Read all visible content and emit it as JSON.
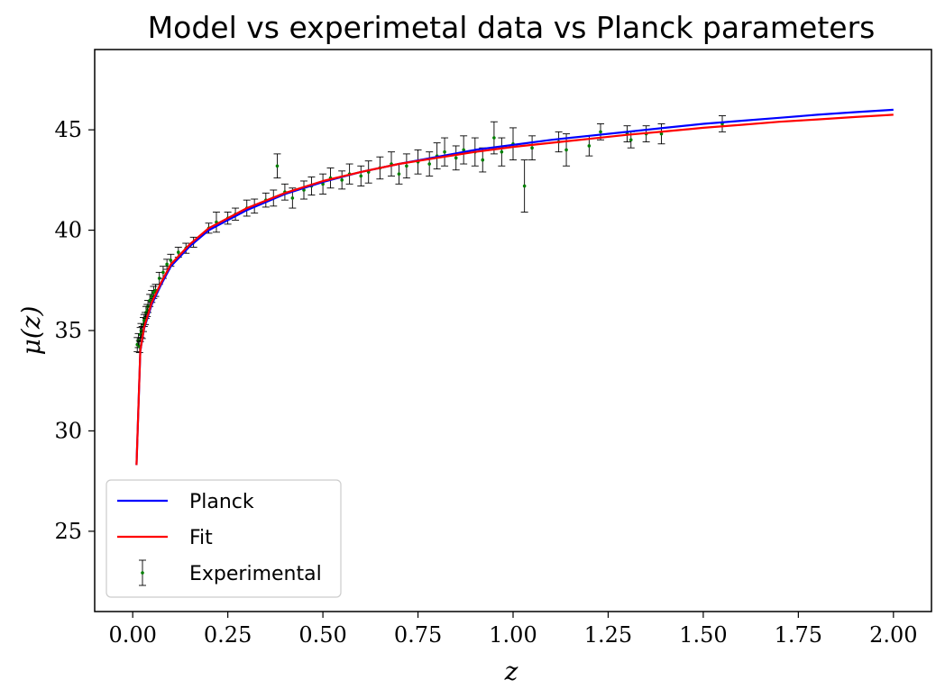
{
  "chart_data": {
    "type": "scatter",
    "title": "Model vs experimetal data vs Planck parameters",
    "xlabel": "z",
    "ylabel": "μ(z)",
    "xlim": [
      -0.1,
      2.1
    ],
    "ylim": [
      21,
      49
    ],
    "x_ticks": [
      0.0,
      0.25,
      0.5,
      0.75,
      1.0,
      1.25,
      1.5,
      1.75,
      2.0
    ],
    "x_tick_labels": [
      "0.00",
      "0.25",
      "0.50",
      "0.75",
      "1.00",
      "1.25",
      "1.50",
      "1.75",
      "2.00"
    ],
    "y_ticks": [
      25,
      30,
      35,
      40,
      45
    ],
    "y_tick_labels": [
      "25",
      "30",
      "35",
      "40",
      "45"
    ],
    "grid": false,
    "legend_position": "lower-left",
    "series": [
      {
        "name": "Planck",
        "kind": "line",
        "color": "#0000ff",
        "x": [
          0.01,
          0.02,
          0.03,
          0.05,
          0.075,
          0.1,
          0.15,
          0.2,
          0.3,
          0.4,
          0.5,
          0.6,
          0.7,
          0.8,
          0.9,
          1.0,
          1.1,
          1.2,
          1.3,
          1.4,
          1.5,
          1.6,
          1.7,
          1.8,
          1.9,
          2.0
        ],
        "y": [
          28.3,
          33.98,
          35.1,
          36.3,
          37.3,
          38.2,
          39.2,
          40.0,
          41.0,
          41.8,
          42.4,
          42.9,
          43.3,
          43.65,
          44.0,
          44.25,
          44.5,
          44.7,
          44.9,
          45.1,
          45.3,
          45.45,
          45.6,
          45.75,
          45.88,
          46.0
        ]
      },
      {
        "name": "Fit",
        "kind": "line",
        "color": "#ff0000",
        "x": [
          0.01,
          0.02,
          0.03,
          0.05,
          0.075,
          0.1,
          0.15,
          0.2,
          0.3,
          0.4,
          0.5,
          0.6,
          0.7,
          0.8,
          0.9,
          1.0,
          1.1,
          1.2,
          1.3,
          1.4,
          1.5,
          1.6,
          1.7,
          1.8,
          1.9,
          2.0
        ],
        "y": [
          28.3,
          34.0,
          35.15,
          36.4,
          37.4,
          38.3,
          39.3,
          40.1,
          41.1,
          41.85,
          42.45,
          42.9,
          43.3,
          43.6,
          43.9,
          44.15,
          44.35,
          44.55,
          44.75,
          44.92,
          45.1,
          45.25,
          45.4,
          45.52,
          45.64,
          45.75
        ]
      },
      {
        "name": "Experimental",
        "kind": "errorbar",
        "color": "#008000",
        "ecolor": "#000000",
        "x": [
          0.012,
          0.015,
          0.018,
          0.02,
          0.022,
          0.025,
          0.028,
          0.03,
          0.033,
          0.035,
          0.038,
          0.04,
          0.045,
          0.05,
          0.055,
          0.06,
          0.07,
          0.08,
          0.09,
          0.1,
          0.12,
          0.14,
          0.16,
          0.2,
          0.22,
          0.25,
          0.27,
          0.3,
          0.32,
          0.35,
          0.37,
          0.38,
          0.4,
          0.42,
          0.45,
          0.47,
          0.5,
          0.52,
          0.55,
          0.57,
          0.6,
          0.62,
          0.65,
          0.68,
          0.7,
          0.72,
          0.75,
          0.78,
          0.8,
          0.82,
          0.85,
          0.87,
          0.9,
          0.92,
          0.95,
          0.97,
          1.0,
          1.03,
          1.05,
          1.12,
          1.14,
          1.2,
          1.23,
          1.3,
          1.31,
          1.35,
          1.39,
          1.55
        ],
        "y": [
          34.3,
          34.5,
          34.2,
          34.8,
          35.0,
          34.9,
          35.3,
          35.5,
          35.6,
          35.9,
          36.0,
          36.2,
          36.5,
          36.7,
          36.9,
          37.0,
          37.6,
          37.9,
          38.3,
          38.5,
          38.9,
          39.1,
          39.4,
          40.1,
          40.4,
          40.6,
          40.8,
          41.1,
          41.2,
          41.5,
          41.6,
          43.2,
          41.9,
          41.6,
          42.0,
          42.2,
          42.3,
          42.6,
          42.5,
          42.8,
          42.7,
          42.9,
          43.1,
          43.3,
          42.8,
          43.2,
          43.4,
          43.3,
          43.7,
          43.9,
          43.6,
          44.0,
          43.9,
          43.5,
          44.6,
          43.9,
          44.3,
          42.2,
          44.1,
          44.4,
          44.0,
          44.2,
          44.9,
          44.8,
          44.5,
          44.8,
          44.8,
          45.3
        ],
        "yerr": [
          0.35,
          0.35,
          0.3,
          0.35,
          0.35,
          0.3,
          0.35,
          0.3,
          0.3,
          0.3,
          0.3,
          0.3,
          0.3,
          0.3,
          0.3,
          0.3,
          0.3,
          0.3,
          0.25,
          0.3,
          0.25,
          0.25,
          0.25,
          0.25,
          0.5,
          0.3,
          0.3,
          0.4,
          0.35,
          0.35,
          0.4,
          0.6,
          0.4,
          0.5,
          0.45,
          0.45,
          0.5,
          0.5,
          0.45,
          0.5,
          0.5,
          0.55,
          0.55,
          0.6,
          0.5,
          0.6,
          0.6,
          0.6,
          0.65,
          0.7,
          0.6,
          0.7,
          0.7,
          0.6,
          0.8,
          0.7,
          0.8,
          1.3,
          0.6,
          0.5,
          0.8,
          0.5,
          0.4,
          0.4,
          0.4,
          0.4,
          0.5,
          0.4
        ]
      }
    ]
  }
}
